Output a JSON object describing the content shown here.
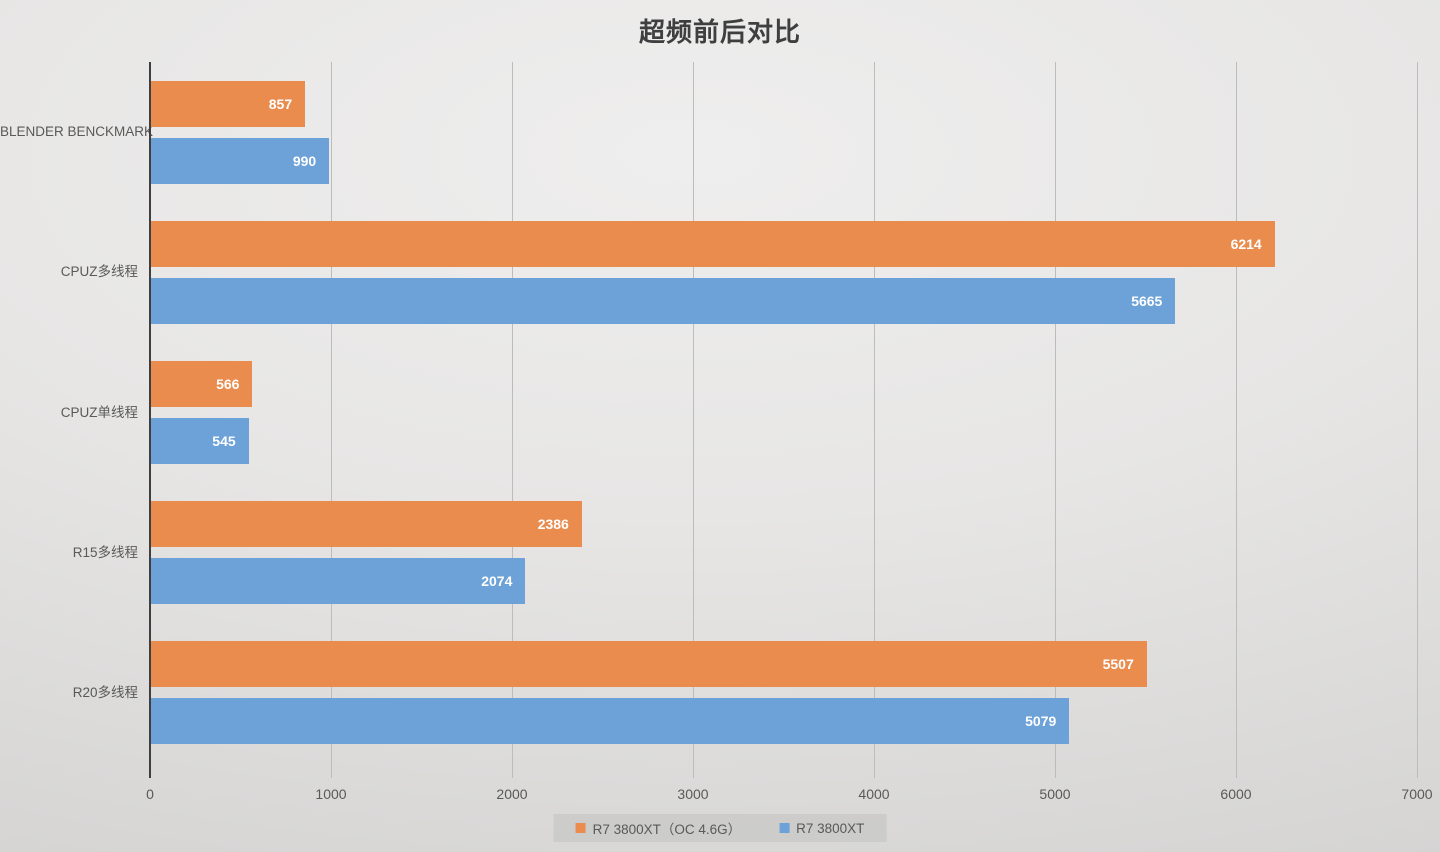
{
  "title": "超频前后对比",
  "chart_data": {
    "type": "bar",
    "orientation": "horizontal",
    "title": "超频前后对比",
    "categories": [
      "BLENDER BENCKMARK",
      "CPUZ多线程",
      "CPUZ单线程",
      "R15多线程",
      "R20多线程"
    ],
    "categories_order": "top-to-bottom",
    "series": [
      {
        "name": "R7 3800XT（OC 4.6G）",
        "color": "#e98c4d",
        "values": [
          857,
          6214,
          566,
          2386,
          5507
        ]
      },
      {
        "name": "R7 3800XT",
        "color": "#6ca2d8",
        "values": [
          990,
          5665,
          545,
          2074,
          5079
        ]
      }
    ],
    "xlim": [
      0,
      7000
    ],
    "xticks": [
      0,
      1000,
      2000,
      3000,
      4000,
      5000,
      6000,
      7000
    ],
    "grid": true,
    "legend_position": "bottom",
    "value_label_color": "#ffffff",
    "axis_line_color": "#3f3f3f",
    "gridline_color": "#bdbcbb",
    "text_color": "#595959"
  }
}
